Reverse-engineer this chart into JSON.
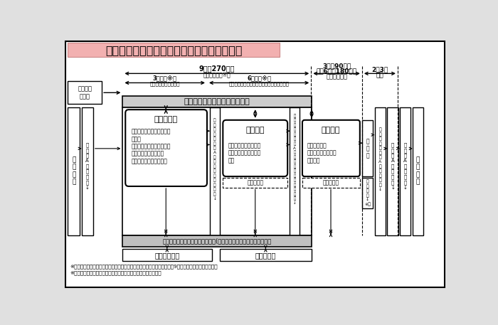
{
  "title": "標準的な分析プロセス及び分析期間の見直し",
  "title_bg": "#f2b0b0",
  "fig_bg": "#e0e0e0",
  "inner_bg": "#ffffff",
  "period_9m": "9月（270日）",
  "period_9m_sub": "（企業分析）※１",
  "period_3m": "3月程度※１",
  "period_3m_sub": "（分析枠組みの決定）",
  "period_6m": "6月程度※１",
  "period_6m_sub": "（決定された分析枠組みに基づく企業分析）",
  "period_kou1": "3月（90日）",
  "period_kou2": "又は6月（180日）",
  "period_kou3": "（公約分析）",
  "period_23_1": "2～3月",
  "period_23_2": "程度",
  "kigyou": "企　業　（医薬品、医療機器）",
  "hyojun": "標準的な\n期　間",
  "mae_title": "分析前協議",
  "mae_body": "・企業が分析の枠組み案を\n　提出\n・提出された枠組み案に基\n　づく協議、論点整理\n・協議内容は文書で記録",
  "kig_title": "企業分析",
  "kig_body": "・分析の枠組みに基づ\n　き、企業が分析を実\n　施",
  "kou_title": "公的分析",
  "kou_body": "・企業分析の\n　検証（ﾋﾞｭｰ）\n・再分析",
  "hitsuyou": "必要な協議",
  "sen1": "専\n門\n組\n織\n（\n一\n）\nA\n分\n析\nの\n枠\n組\nみ\nの\n決\n定\n↓",
  "sen2": "専\n門\n組\n織\n（\n二\n）\nA\n企\n業\n分\n析\n及\nび\n検\n証\nの\n確\n認\n↓",
  "sen3": "専\n門\n組\n織\n（\n三\n）\nA\n総\n合\n的\n評\n価\n↓",
  "chu1": "中\n医\n協\nA\n品\n目\n指\n定\n↓",
  "chu2": "中\n医\n協\nA\n評\n価\n決\n定\n↓",
  "chu3": "中\n医\n協\nA\n価\n格\n決\n定\n↓",
  "hoken": "保\n険\n収\n載",
  "kakaku_adj": "価\n格\n調\n整",
  "sabunseki": "再\n分\n析",
  "tsuika": "追\n加\n分\n析\n↓\n※２",
  "ministry": "厚生労働省・国立保健医療科学院(保健医療経済評価研究センター）",
  "rinsho": "臨床の専門家",
  "kouhan": "公的分析班",
  "note1": "※１「分析前協議」と「分析の枠組みに基づく企業分析」の合計の期間は9月を上回らないこととする。",
  "note2": "※２　公的分析の結果、再分析まで実施した場合を示している。"
}
